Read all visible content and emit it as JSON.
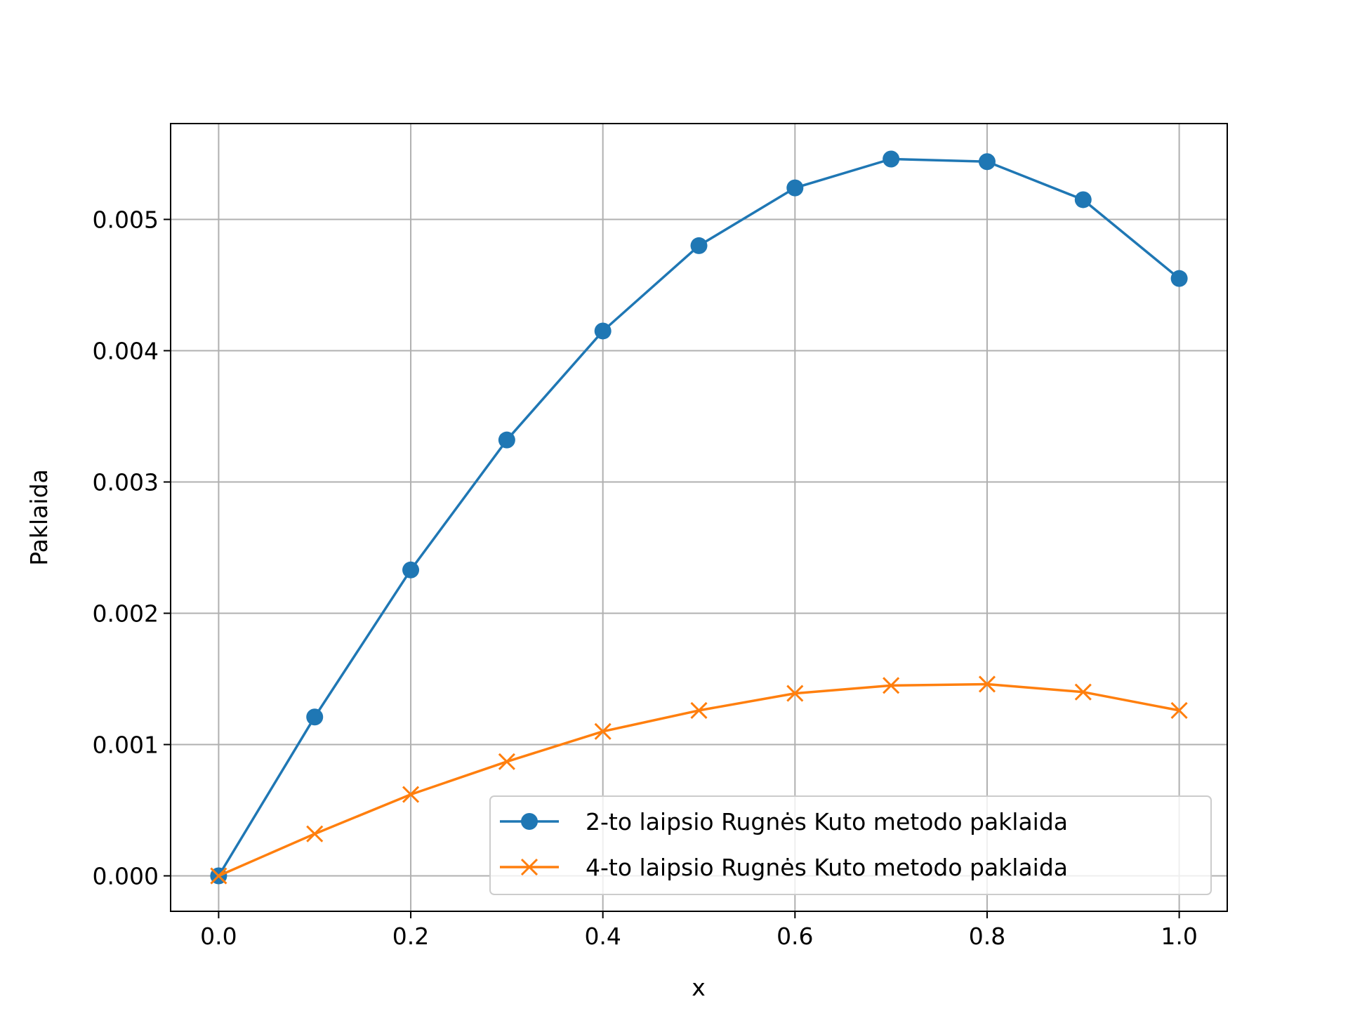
{
  "chart_data": {
    "type": "line",
    "title": "",
    "xlabel": "x",
    "ylabel": "Paklaida",
    "xlim": [
      -0.05,
      1.05
    ],
    "ylim": [
      -0.00027,
      0.00573
    ],
    "grid": true,
    "legend_position": "lower-right",
    "x_ticks": [
      0.0,
      0.2,
      0.4,
      0.6,
      0.8,
      1.0
    ],
    "x_tick_labels": [
      "0.0",
      "0.2",
      "0.4",
      "0.6",
      "0.8",
      "1.0"
    ],
    "y_ticks": [
      0.0,
      0.001,
      0.002,
      0.003,
      0.004,
      0.005
    ],
    "y_tick_labels": [
      "0.000",
      "0.001",
      "0.002",
      "0.003",
      "0.004",
      "0.005"
    ],
    "x": [
      0.0,
      0.1,
      0.2,
      0.3,
      0.4,
      0.5,
      0.6,
      0.7,
      0.8,
      0.9,
      1.0
    ],
    "series": [
      {
        "name": "2-to laipsio Rugnės Kuto metodo paklaida",
        "color": "#1f77b4",
        "marker": "circle",
        "values": [
          0.0,
          0.00121,
          0.00233,
          0.00332,
          0.00415,
          0.0048,
          0.00524,
          0.00546,
          0.00544,
          0.00515,
          0.00455
        ]
      },
      {
        "name": "4-to laipsio Rugnės Kuto metodo paklaida",
        "color": "#ff7f0e",
        "marker": "x",
        "values": [
          0.0,
          0.00032,
          0.00062,
          0.00087,
          0.0011,
          0.00126,
          0.00139,
          0.00145,
          0.00146,
          0.0014,
          0.00126
        ]
      }
    ]
  }
}
